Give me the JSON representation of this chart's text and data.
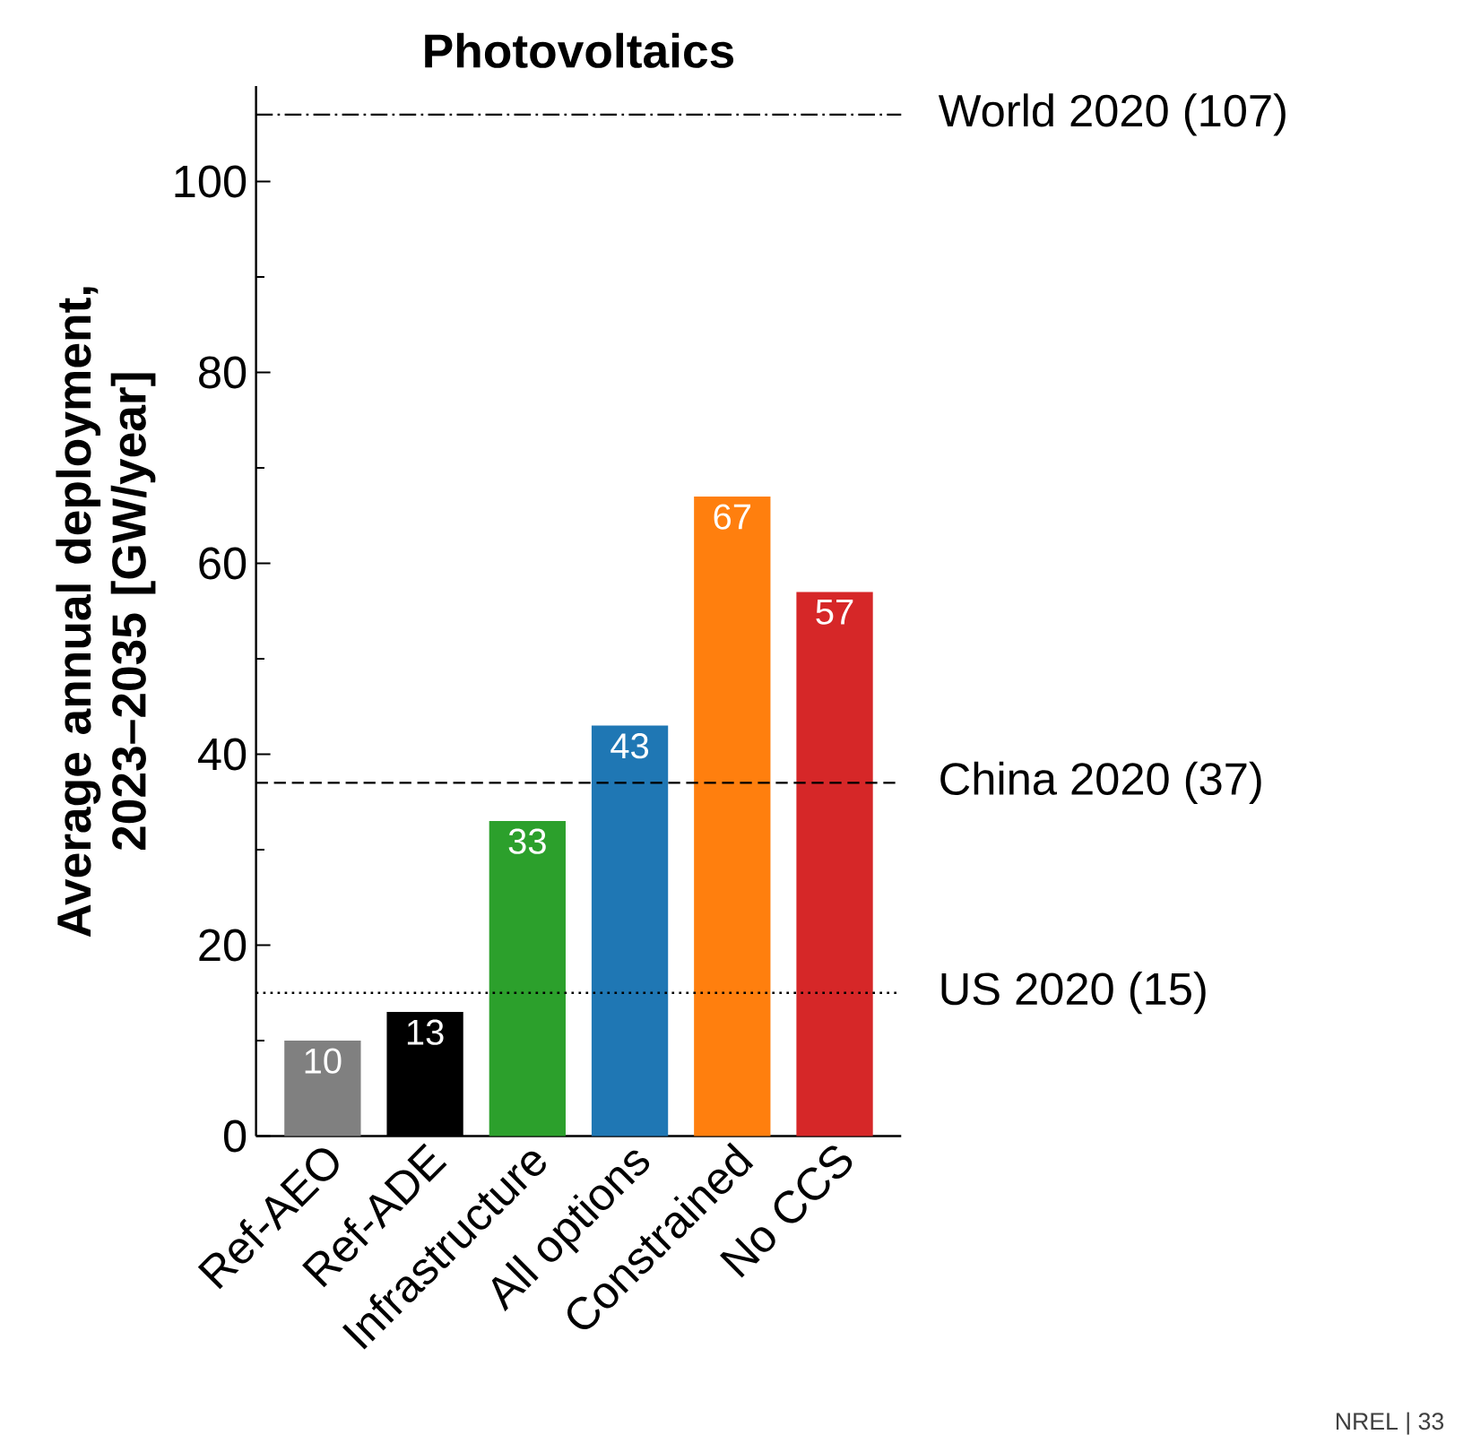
{
  "chart_data": {
    "type": "bar",
    "title": "Photovoltaics",
    "ylabel": "Average annual deployment, 2023–2035 [GW/year]",
    "categories": [
      "Ref-AEO",
      "Ref-ADE",
      "Infrastructure",
      "All options",
      "Constrained",
      "No CCS"
    ],
    "values": [
      10,
      13,
      33,
      43,
      67,
      57
    ],
    "colors": [
      "#808080",
      "#000000",
      "#2ca02c",
      "#1f77b4",
      "#ff7f0e",
      "#d62728"
    ],
    "data_labels": true,
    "ylim": [
      0,
      110
    ],
    "yticks": [
      0,
      {
        "value": 10,
        "label": null
      },
      20,
      {
        "value": 30,
        "label": null
      },
      40,
      {
        "value": 50,
        "label": null
      },
      60,
      {
        "value": 70,
        "label": null
      },
      80,
      {
        "value": 90,
        "label": null
      },
      100
    ],
    "ref_lines": [
      {
        "axis": "y",
        "value": 107,
        "label": "World 2020 (107)",
        "color": "#000000",
        "line_style": "dashdot"
      },
      {
        "axis": "y",
        "value": 37,
        "label": "China 2020 (37)",
        "color": "#000000",
        "line_style": "dashed"
      },
      {
        "axis": "y",
        "value": 15,
        "label": "US 2020 (15)",
        "color": "#000000",
        "line_style": "dotted"
      }
    ],
    "annotations": [
      "NREL   |   33"
    ]
  }
}
